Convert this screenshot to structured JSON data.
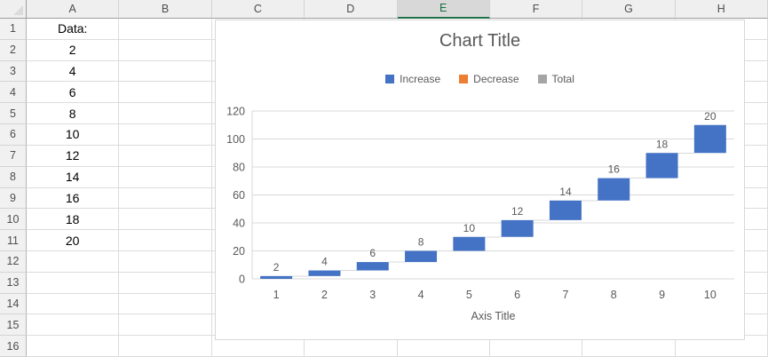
{
  "spreadsheet": {
    "column_headers": [
      "A",
      "B",
      "C",
      "D",
      "E",
      "F",
      "G",
      "H"
    ],
    "selected_column": "E",
    "row_headers": [
      "1",
      "2",
      "3",
      "4",
      "5",
      "6",
      "7",
      "8",
      "9",
      "10",
      "11",
      "12",
      "13",
      "14",
      "15",
      "16"
    ],
    "cells": {
      "A": [
        "Data:",
        "2",
        "4",
        "6",
        "8",
        "10",
        "12",
        "14",
        "16",
        "18",
        "20",
        "",
        "",
        "",
        "",
        ""
      ]
    }
  },
  "chart_data": {
    "type": "bar",
    "subtype": "waterfall",
    "title": "Chart Title",
    "xlabel": "Axis Title",
    "ylabel": "",
    "categories": [
      "1",
      "2",
      "3",
      "4",
      "5",
      "6",
      "7",
      "8",
      "9",
      "10"
    ],
    "series": [
      {
        "name": "Increase",
        "values": [
          2,
          4,
          6,
          8,
          10,
          12,
          14,
          16,
          18,
          20
        ]
      }
    ],
    "data_labels": [
      "2",
      "4",
      "6",
      "8",
      "10",
      "12",
      "14",
      "16",
      "18",
      "20"
    ],
    "cumulative_ends": [
      2,
      6,
      12,
      20,
      30,
      42,
      56,
      72,
      90,
      110
    ],
    "yticks": [
      0,
      20,
      40,
      60,
      80,
      100,
      120
    ],
    "ylim": [
      0,
      120
    ],
    "grid": true,
    "legend_position": "top",
    "legend": [
      {
        "label": "Increase",
        "color": "#4472C4"
      },
      {
        "label": "Decrease",
        "color": "#ED7D31"
      },
      {
        "label": "Total",
        "color": "#A5A5A5"
      }
    ],
    "colors": {
      "bar": "#4472C4",
      "gridline": "#D9D9D9",
      "connector": "#D9D9D9",
      "axis_text": "#595959",
      "title_text": "#595959"
    }
  }
}
